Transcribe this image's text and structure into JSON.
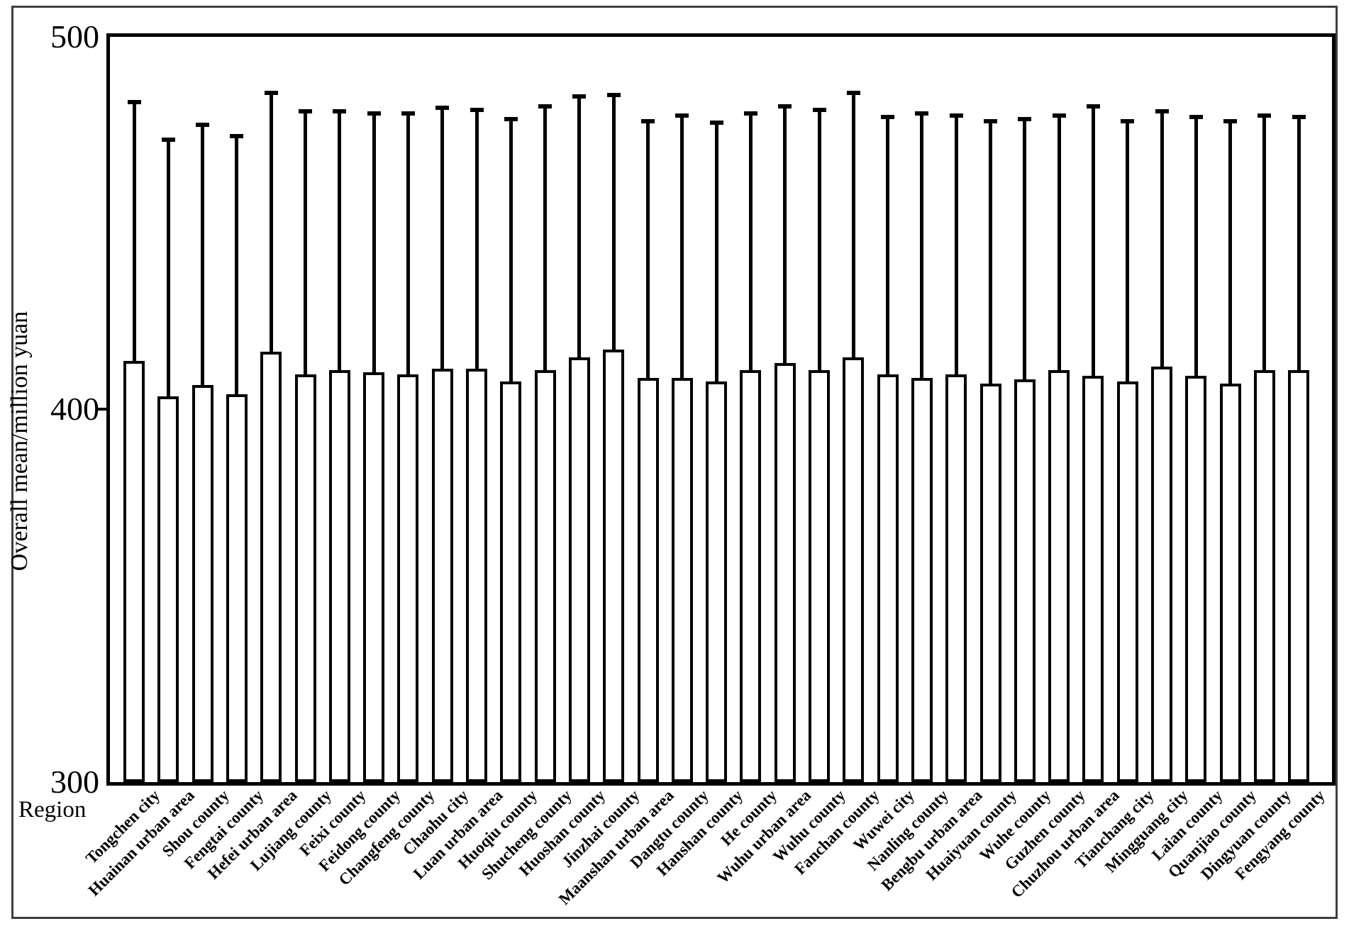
{
  "chart_data": {
    "type": "bar",
    "title": "",
    "xlabel": "Region",
    "ylabel": "Overall mean/million yuan",
    "ylim": [
      300,
      500
    ],
    "yticks": [
      500,
      400,
      300
    ],
    "grid": false,
    "legend": "none",
    "bar_fill_color": "#ffffff",
    "bar_edge_color": "#000000",
    "error_bar_style": "upper whisker with cap",
    "categories": [
      "Tongchen city",
      "Huainan urban area",
      "Shou county",
      "Fengtai county",
      "Hefei urban area",
      "Lujiang county",
      "Feixi county",
      "Feidong county",
      "Changfeng county",
      "Chaohu city",
      "Luan urban area",
      "Huoqiu county",
      "Shucheng county",
      "Huoshan county",
      "Jinzhai county",
      "Maanshan urban area",
      "Dangtu county",
      "Hanshan county",
      "He county",
      "Wuhu urban area",
      "Wuhu county",
      "Fanchan county",
      "Wuwei city",
      "Nanling county",
      "Bengbu urban area",
      "Huaiyuan county",
      "Wuhe county",
      "Guzhen county",
      "Chuzhou urban area",
      "Tianchang city",
      "Mingguang city",
      "Laian county",
      "Quanjiao county",
      "Dingyuan county",
      "Fengyang county"
    ],
    "series": [
      {
        "name": "Overall mean",
        "values": [
          413,
          403.5,
          406.5,
          404,
          415.5,
          409.5,
          410.5,
          410,
          409.5,
          411,
          411,
          407.5,
          410.5,
          414,
          416,
          408.5,
          408.5,
          407.5,
          410.5,
          412.5,
          410.5,
          414,
          409.5,
          408.5,
          409.5,
          407,
          408,
          410.5,
          409,
          407.5,
          411.5,
          409,
          407,
          410.5,
          410.5
        ]
      }
    ],
    "upper_error_tops": [
      483,
      473,
      477,
      474,
      485.5,
      480.5,
      480.5,
      480,
      480,
      481.5,
      481,
      478.5,
      482,
      484.5,
      485,
      478,
      479.5,
      477.5,
      480,
      482,
      481,
      485.5,
      479,
      480,
      479.5,
      478,
      478.5,
      479.5,
      482,
      478,
      480.5,
      479,
      478,
      479.5,
      479
    ]
  },
  "axis_labels": {
    "y_title": "Overall mean/million yuan",
    "x_title": "Region",
    "ytick_500": "500",
    "ytick_400": "400",
    "ytick_300": "300"
  }
}
